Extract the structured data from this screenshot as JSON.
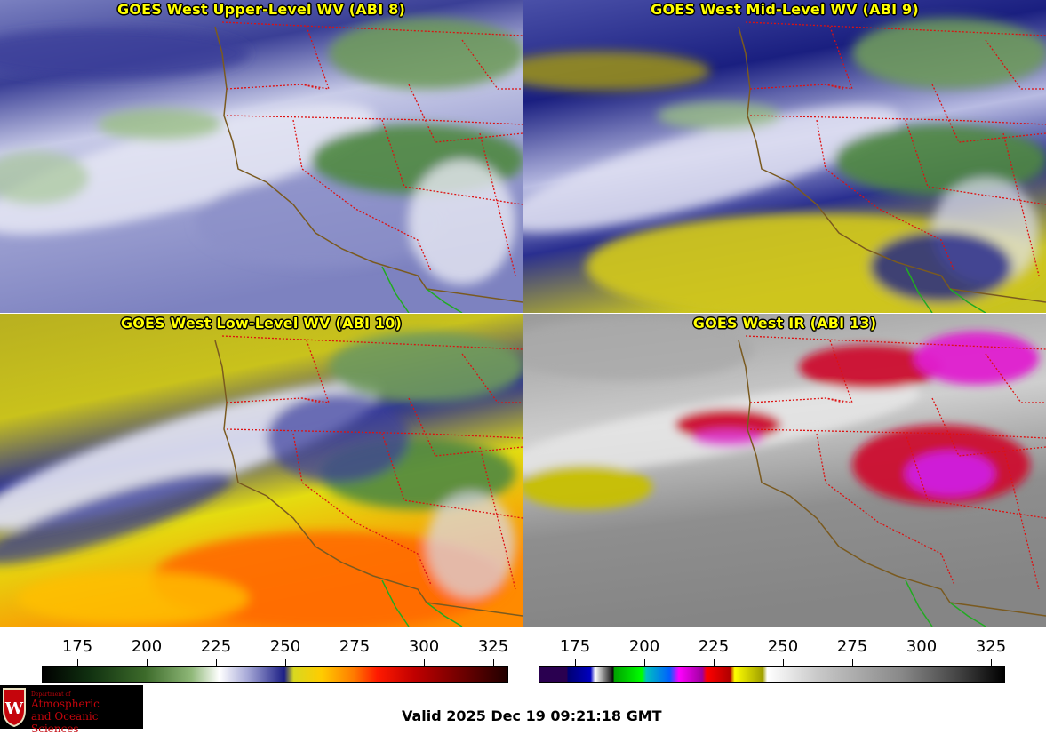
{
  "panels": {
    "p1": {
      "title": "GOES West Upper-Level WV (ABI 8)"
    },
    "p2": {
      "title": "GOES West Mid-Level WV (ABI 9)"
    },
    "p3": {
      "title": "GOES West Low-Level WV (ABI 10)"
    },
    "p4": {
      "title": "GOES West IR (ABI 13)"
    }
  },
  "colorbars": {
    "wv": {
      "ticks": [
        "175",
        "200",
        "225",
        "250",
        "275",
        "300",
        "325"
      ]
    },
    "ir": {
      "ticks": [
        "175",
        "200",
        "225",
        "250",
        "275",
        "300",
        "325"
      ]
    }
  },
  "logo": {
    "line1": "Department of",
    "line2": "Atmospheric",
    "line3": "and Oceanic Sciences"
  },
  "valid": "Valid 2025 Dec 19 09:21:18 GMT",
  "colors": {
    "title_text": "#ffff00",
    "state_borders": "#dd1111",
    "coastline": "#7a5a20",
    "mexico_coast": "#22aa22",
    "logo_red": "#c5050c"
  }
}
